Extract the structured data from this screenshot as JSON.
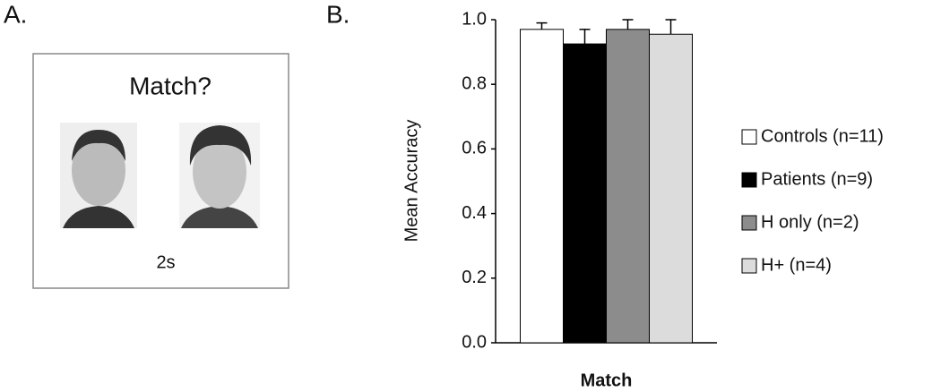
{
  "panel_a": {
    "label": "A.",
    "prompt": "Match?",
    "duration": "2s"
  },
  "panel_b_label": "B.",
  "chart_data": {
    "type": "bar",
    "ylabel": "Mean Accuracy",
    "categories": [
      "Match"
    ],
    "series": [
      {
        "name": "Controls (n=11)",
        "color": "#ffffff",
        "values": [
          0.97
        ],
        "errors": [
          0.02
        ]
      },
      {
        "name": "Patients (n=9)",
        "color": "#000000",
        "values": [
          0.925
        ],
        "errors": [
          0.045
        ]
      },
      {
        "name": "H only (n=2)",
        "color": "#8c8c8c",
        "values": [
          0.97
        ],
        "errors": [
          0.03
        ]
      },
      {
        "name": "H+ (n=4)",
        "color": "#dcdcdc",
        "values": [
          0.955
        ],
        "errors": [
          0.045
        ]
      }
    ],
    "ylim": [
      0,
      1
    ],
    "yticks": [
      {
        "value": 0,
        "label": "0.0"
      },
      0.2,
      0.4,
      0.6,
      0.8,
      {
        "value": 1,
        "label": "1.0"
      }
    ],
    "legend": "right"
  }
}
